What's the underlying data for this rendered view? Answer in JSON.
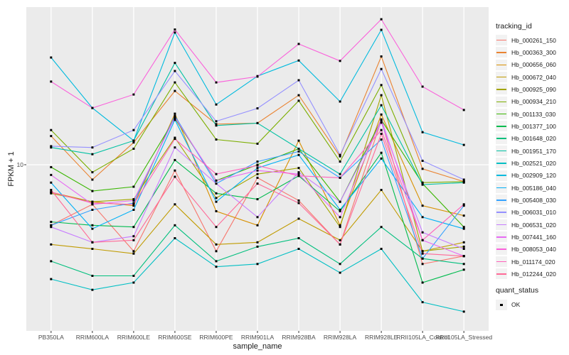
{
  "y_axis": {
    "title": "FPKM + 1",
    "tick_label": "10"
  },
  "x_axis": {
    "title": "sample_name"
  },
  "legend": {
    "tracking_title": "tracking_id",
    "quant_title": "quant_status",
    "quant_ok_label": "OK"
  },
  "colors": {
    "panel_background": "#EBEBEB",
    "gridline": "#FFFFFF",
    "tick_mark": "#333333",
    "axis_text": "#4d4d4d",
    "point": "#000000",
    "legend_key_background": "#F2F2F2"
  },
  "chart_data": {
    "type": "line",
    "title": "",
    "xlabel": "sample_name",
    "ylabel": "FPKM + 1",
    "y_scale": "log10",
    "y_ticks": [
      10
    ],
    "ylim_hint": [
      1.3,
      72
    ],
    "grid": "major-only, white on grey panel",
    "legend_position": "right",
    "point_marker": "small black square (quant_status = OK)",
    "categories": [
      "PB350LA",
      "RRIM600LA",
      "RRIM600LE",
      "RRIM600SE",
      "RRIM600PE",
      "RRIM901LA",
      "RRIM928BA",
      "RRIM928LA",
      "RRIM928LE",
      "RRII105LA_Control",
      "RRII105LA_Stressed"
    ],
    "series": [
      {
        "name": "Hb_000261_150",
        "color": "#F8766D",
        "values": [
          4.7,
          6.1,
          3.4,
          9.3,
          3.4,
          8.5,
          6.4,
          3.7,
          17.4,
          2.9,
          3.2
        ]
      },
      {
        "name": "Hb_000363_300",
        "color": "#EA8331",
        "values": [
          14.3,
          8.3,
          13.2,
          25.1,
          16.6,
          16.8,
          23.8,
          11.1,
          38.6,
          9.5,
          8.1
        ]
      },
      {
        "name": "Hb_000656_060",
        "color": "#D89000",
        "values": [
          7.1,
          6.3,
          6.0,
          18.9,
          5.6,
          4.7,
          13.5,
          4.7,
          18.7,
          6.0,
          5.3
        ]
      },
      {
        "name": "Hb_000672_040",
        "color": "#C09B00",
        "values": [
          3.7,
          3.5,
          3.3,
          6.1,
          3.7,
          3.8,
          5.1,
          3.9,
          7.3,
          3.4,
          3.8
        ]
      },
      {
        "name": "Hb_000925_090",
        "color": "#A3A500",
        "values": [
          7.0,
          6.3,
          6.5,
          14.0,
          6.6,
          8.9,
          9.6,
          4.6,
          23.8,
          3.4,
          3.6
        ]
      },
      {
        "name": "Hb_000934_210",
        "color": "#7CAE00",
        "values": [
          15.4,
          9.1,
          12.2,
          27.9,
          13.7,
          13.0,
          22.2,
          10.4,
          27.0,
          8.0,
          8.1
        ]
      },
      {
        "name": "Hb_001133_030",
        "color": "#39B600",
        "values": [
          9.7,
          7.2,
          7.6,
          17.8,
          8.2,
          10.0,
          12.2,
          6.3,
          17.5,
          7.9,
          4.6
        ]
      },
      {
        "name": "Hb_001377_100",
        "color": "#00BB4E",
        "values": [
          4.9,
          4.7,
          4.6,
          10.6,
          7.0,
          6.5,
          8.7,
          5.6,
          11.6,
          2.3,
          2.7
        ]
      },
      {
        "name": "Hb_001648_020",
        "color": "#00BF7D",
        "values": [
          3.0,
          2.5,
          2.5,
          4.7,
          3.0,
          3.6,
          4.0,
          2.9,
          4.6,
          3.1,
          2.9
        ]
      },
      {
        "name": "Hb_001951_170",
        "color": "#00C1A3",
        "values": [
          12.4,
          11.4,
          13.5,
          35.6,
          16.3,
          16.8,
          12.2,
          8.9,
          21.0,
          7.8,
          8.0
        ]
      },
      {
        "name": "Hb_002521_020",
        "color": "#00BFC4",
        "values": [
          2.4,
          2.1,
          2.3,
          4.0,
          2.8,
          2.9,
          3.5,
          2.6,
          3.5,
          1.8,
          1.6
        ]
      },
      {
        "name": "Hb_002909_120",
        "color": "#00BADE",
        "values": [
          38.1,
          20.3,
          13.5,
          52.0,
          21.2,
          30.2,
          36.7,
          22.0,
          53.8,
          15.0,
          12.8
        ]
      },
      {
        "name": "Hb_005186_040",
        "color": "#00B0F6",
        "values": [
          8.0,
          4.5,
          5.7,
          17.5,
          6.3,
          9.6,
          11.3,
          5.7,
          10.8,
          5.2,
          4.5
        ]
      },
      {
        "name": "Hb_005408_030",
        "color": "#35A2FF",
        "values": [
          4.7,
          5.7,
          6.2,
          18.4,
          7.9,
          10.4,
          11.8,
          8.5,
          13.7,
          3.1,
          6.0
        ]
      },
      {
        "name": "Hb_006031_010",
        "color": "#9590FF",
        "values": [
          12.6,
          12.4,
          15.4,
          32.2,
          17.2,
          20.2,
          28.7,
          11.3,
          33.0,
          10.5,
          8.3
        ]
      },
      {
        "name": "Hb_006531_020",
        "color": "#C77CFF",
        "values": [
          4.6,
          3.8,
          4.1,
          12.4,
          7.9,
          5.2,
          9.1,
          6.3,
          16.9,
          4.3,
          3.5
        ]
      },
      {
        "name": "Hb_007441_160",
        "color": "#E76BF3",
        "values": [
          8.8,
          6.1,
          6.4,
          18.0,
          8.2,
          9.3,
          8.9,
          5.2,
          17.6,
          3.9,
          3.2
        ]
      },
      {
        "name": "Hb_008053_040",
        "color": "#FA62DB",
        "values": [
          28.2,
          20.3,
          24.0,
          54.0,
          27.9,
          30.0,
          45.1,
          36.5,
          61.4,
          26.5,
          19.8
        ]
      },
      {
        "name": "Hb_011174_020",
        "color": "#FF62BC",
        "values": [
          7.1,
          6.2,
          6.1,
          13.8,
          8.9,
          9.9,
          8.7,
          8.5,
          15.4,
          3.9,
          6.1
        ]
      },
      {
        "name": "Hb_012244_020",
        "color": "#FF6A98",
        "values": [
          7.3,
          3.8,
          3.9,
          8.6,
          4.6,
          7.9,
          6.2,
          3.7,
          14.7,
          3.3,
          3.2
        ]
      }
    ],
    "quant_status": {
      "label": "OK",
      "marker_color": "#000000"
    }
  }
}
